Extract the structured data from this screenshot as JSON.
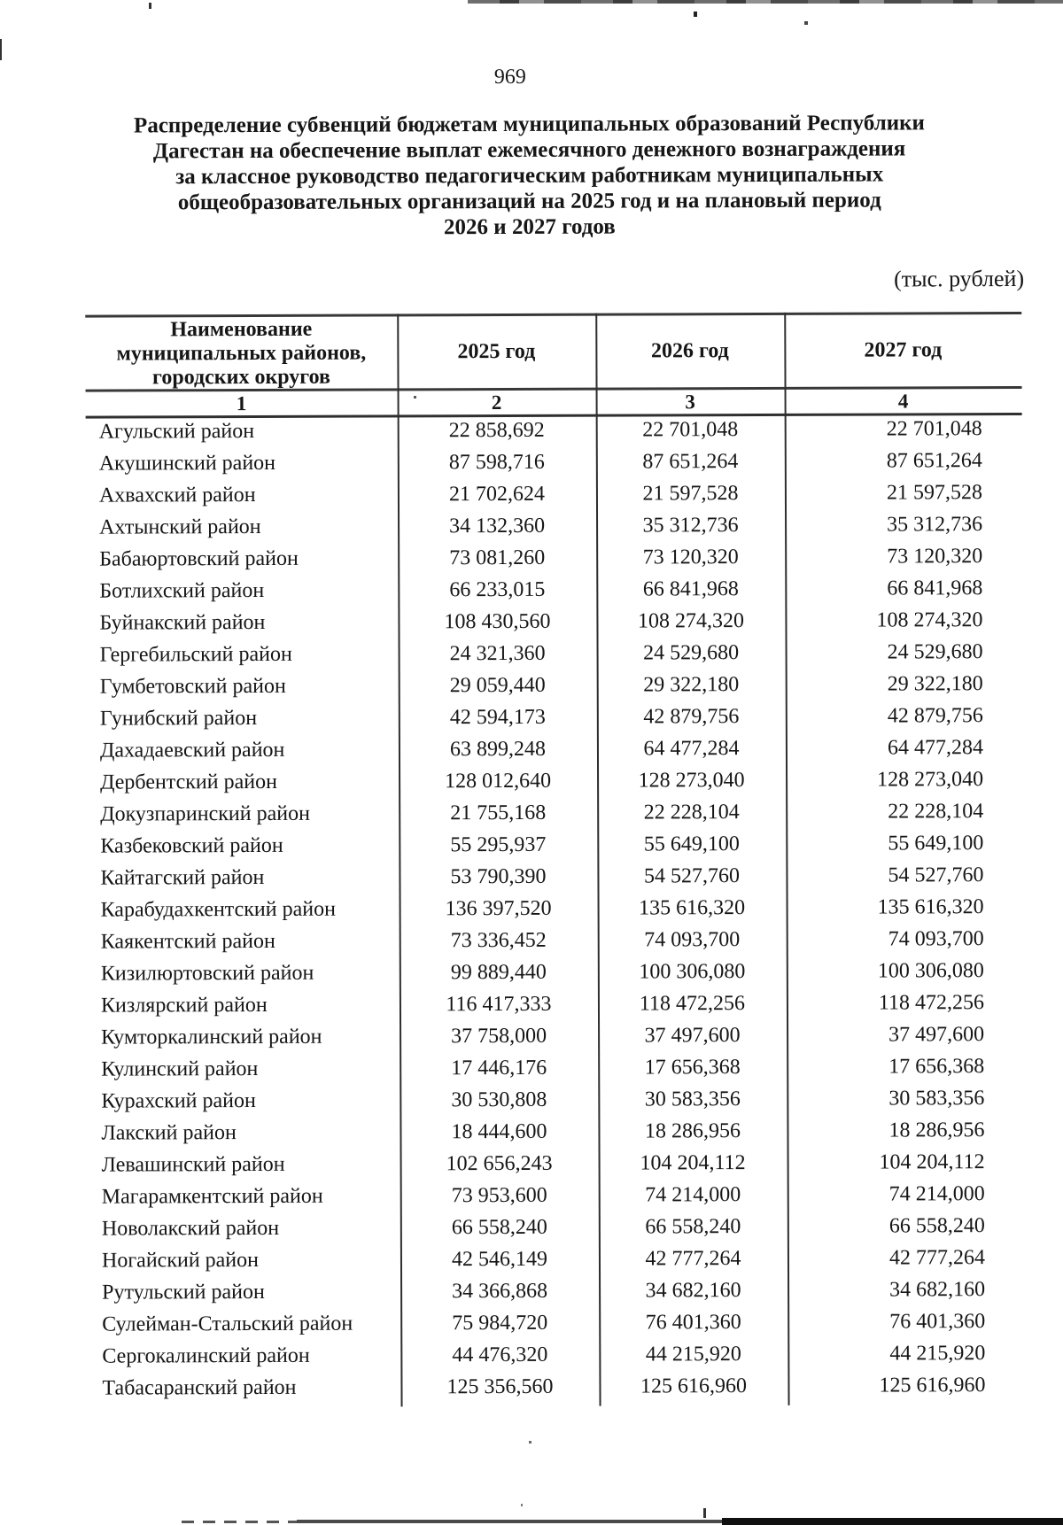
{
  "page": {
    "number": "969",
    "title_lines": [
      "Распределение субвенций бюджетам муниципальных образований Республики",
      "Дагестан на обеспечение выплат ежемесячного денежного вознаграждения",
      "за классное руководство педагогическим работникам муниципальных",
      "общеобразовательных организаций на 2025 год и на плановый период",
      "2026 и 2027 годов"
    ],
    "units_note": "(тыс. рублей)"
  },
  "table": {
    "name_header_lines": [
      "Наименование",
      "муниципальных районов,",
      "городских округов"
    ],
    "year_headers": [
      "2025 год",
      "2026 год",
      "2027 год"
    ],
    "column_numbers": [
      "1",
      "2",
      "3",
      "4"
    ],
    "rows": [
      {
        "name": "Агульский район",
        "y2025": "22 858,692",
        "y2026": "22 701,048",
        "y2027": "22 701,048"
      },
      {
        "name": "Акушинский район",
        "y2025": "87 598,716",
        "y2026": "87 651,264",
        "y2027": "87 651,264"
      },
      {
        "name": "Ахвахский район",
        "y2025": "21 702,624",
        "y2026": "21 597,528",
        "y2027": "21 597,528"
      },
      {
        "name": "Ахтынский район",
        "y2025": "34 132,360",
        "y2026": "35 312,736",
        "y2027": "35 312,736"
      },
      {
        "name": "Бабаюртовский район",
        "y2025": "73 081,260",
        "y2026": "73 120,320",
        "y2027": "73 120,320"
      },
      {
        "name": "Ботлихский район",
        "y2025": "66 233,015",
        "y2026": "66 841,968",
        "y2027": "66 841,968"
      },
      {
        "name": "Буйнакский район",
        "y2025": "108 430,560",
        "y2026": "108 274,320",
        "y2027": "108 274,320"
      },
      {
        "name": "Гергебильский район",
        "y2025": "24 321,360",
        "y2026": "24 529,680",
        "y2027": "24 529,680"
      },
      {
        "name": "Гумбетовский район",
        "y2025": "29 059,440",
        "y2026": "29 322,180",
        "y2027": "29 322,180"
      },
      {
        "name": "Гунибский район",
        "y2025": "42 594,173",
        "y2026": "42 879,756",
        "y2027": "42 879,756"
      },
      {
        "name": "Дахадаевский район",
        "y2025": "63 899,248",
        "y2026": "64 477,284",
        "y2027": "64 477,284"
      },
      {
        "name": "Дербентский район",
        "y2025": "128 012,640",
        "y2026": "128 273,040",
        "y2027": "128 273,040"
      },
      {
        "name": "Докузпаринский район",
        "y2025": "21 755,168",
        "y2026": "22 228,104",
        "y2027": "22 228,104"
      },
      {
        "name": "Казбековский район",
        "y2025": "55 295,937",
        "y2026": "55 649,100",
        "y2027": "55 649,100"
      },
      {
        "name": "Кайтагский район",
        "y2025": "53 790,390",
        "y2026": "54 527,760",
        "y2027": "54 527,760"
      },
      {
        "name": "Карабудахкентский район",
        "y2025": "136 397,520",
        "y2026": "135 616,320",
        "y2027": "135 616,320"
      },
      {
        "name": "Каякентский район",
        "y2025": "73 336,452",
        "y2026": "74 093,700",
        "y2027": "74 093,700"
      },
      {
        "name": "Кизилюртовский район",
        "y2025": "99 889,440",
        "y2026": "100 306,080",
        "y2027": "100 306,080"
      },
      {
        "name": "Кизлярский район",
        "y2025": "116 417,333",
        "y2026": "118 472,256",
        "y2027": "118 472,256"
      },
      {
        "name": "Кумторкалинский район",
        "y2025": "37 758,000",
        "y2026": "37 497,600",
        "y2027": "37 497,600"
      },
      {
        "name": "Кулинский район",
        "y2025": "17 446,176",
        "y2026": "17 656,368",
        "y2027": "17 656,368"
      },
      {
        "name": "Курахский район",
        "y2025": "30 530,808",
        "y2026": "30 583,356",
        "y2027": "30 583,356"
      },
      {
        "name": "Лакский район",
        "y2025": "18 444,600",
        "y2026": "18 286,956",
        "y2027": "18 286,956"
      },
      {
        "name": "Левашинский район",
        "y2025": "102 656,243",
        "y2026": "104 204,112",
        "y2027": "104 204,112"
      },
      {
        "name": "Магарамкентский район",
        "y2025": "73 953,600",
        "y2026": "74 214,000",
        "y2027": "74 214,000"
      },
      {
        "name": "Новолакский район",
        "y2025": "66 558,240",
        "y2026": "66 558,240",
        "y2027": "66 558,240"
      },
      {
        "name": "Ногайский район",
        "y2025": "42 546,149",
        "y2026": "42 777,264",
        "y2027": "42 777,264"
      },
      {
        "name": "Рутульский район",
        "y2025": "34 366,868",
        "y2026": "34 682,160",
        "y2027": "34 682,160"
      },
      {
        "name": "Сулейман-Стальский район",
        "y2025": "75 984,720",
        "y2026": "76 401,360",
        "y2027": "76 401,360"
      },
      {
        "name": "Сергокалинский район",
        "y2025": "44 476,320",
        "y2026": "44 215,920",
        "y2027": "44 215,920"
      },
      {
        "name": "Табасаранский район",
        "y2025": "125 356,560",
        "y2026": "125 616,960",
        "y2027": "125 616,960"
      }
    ]
  }
}
